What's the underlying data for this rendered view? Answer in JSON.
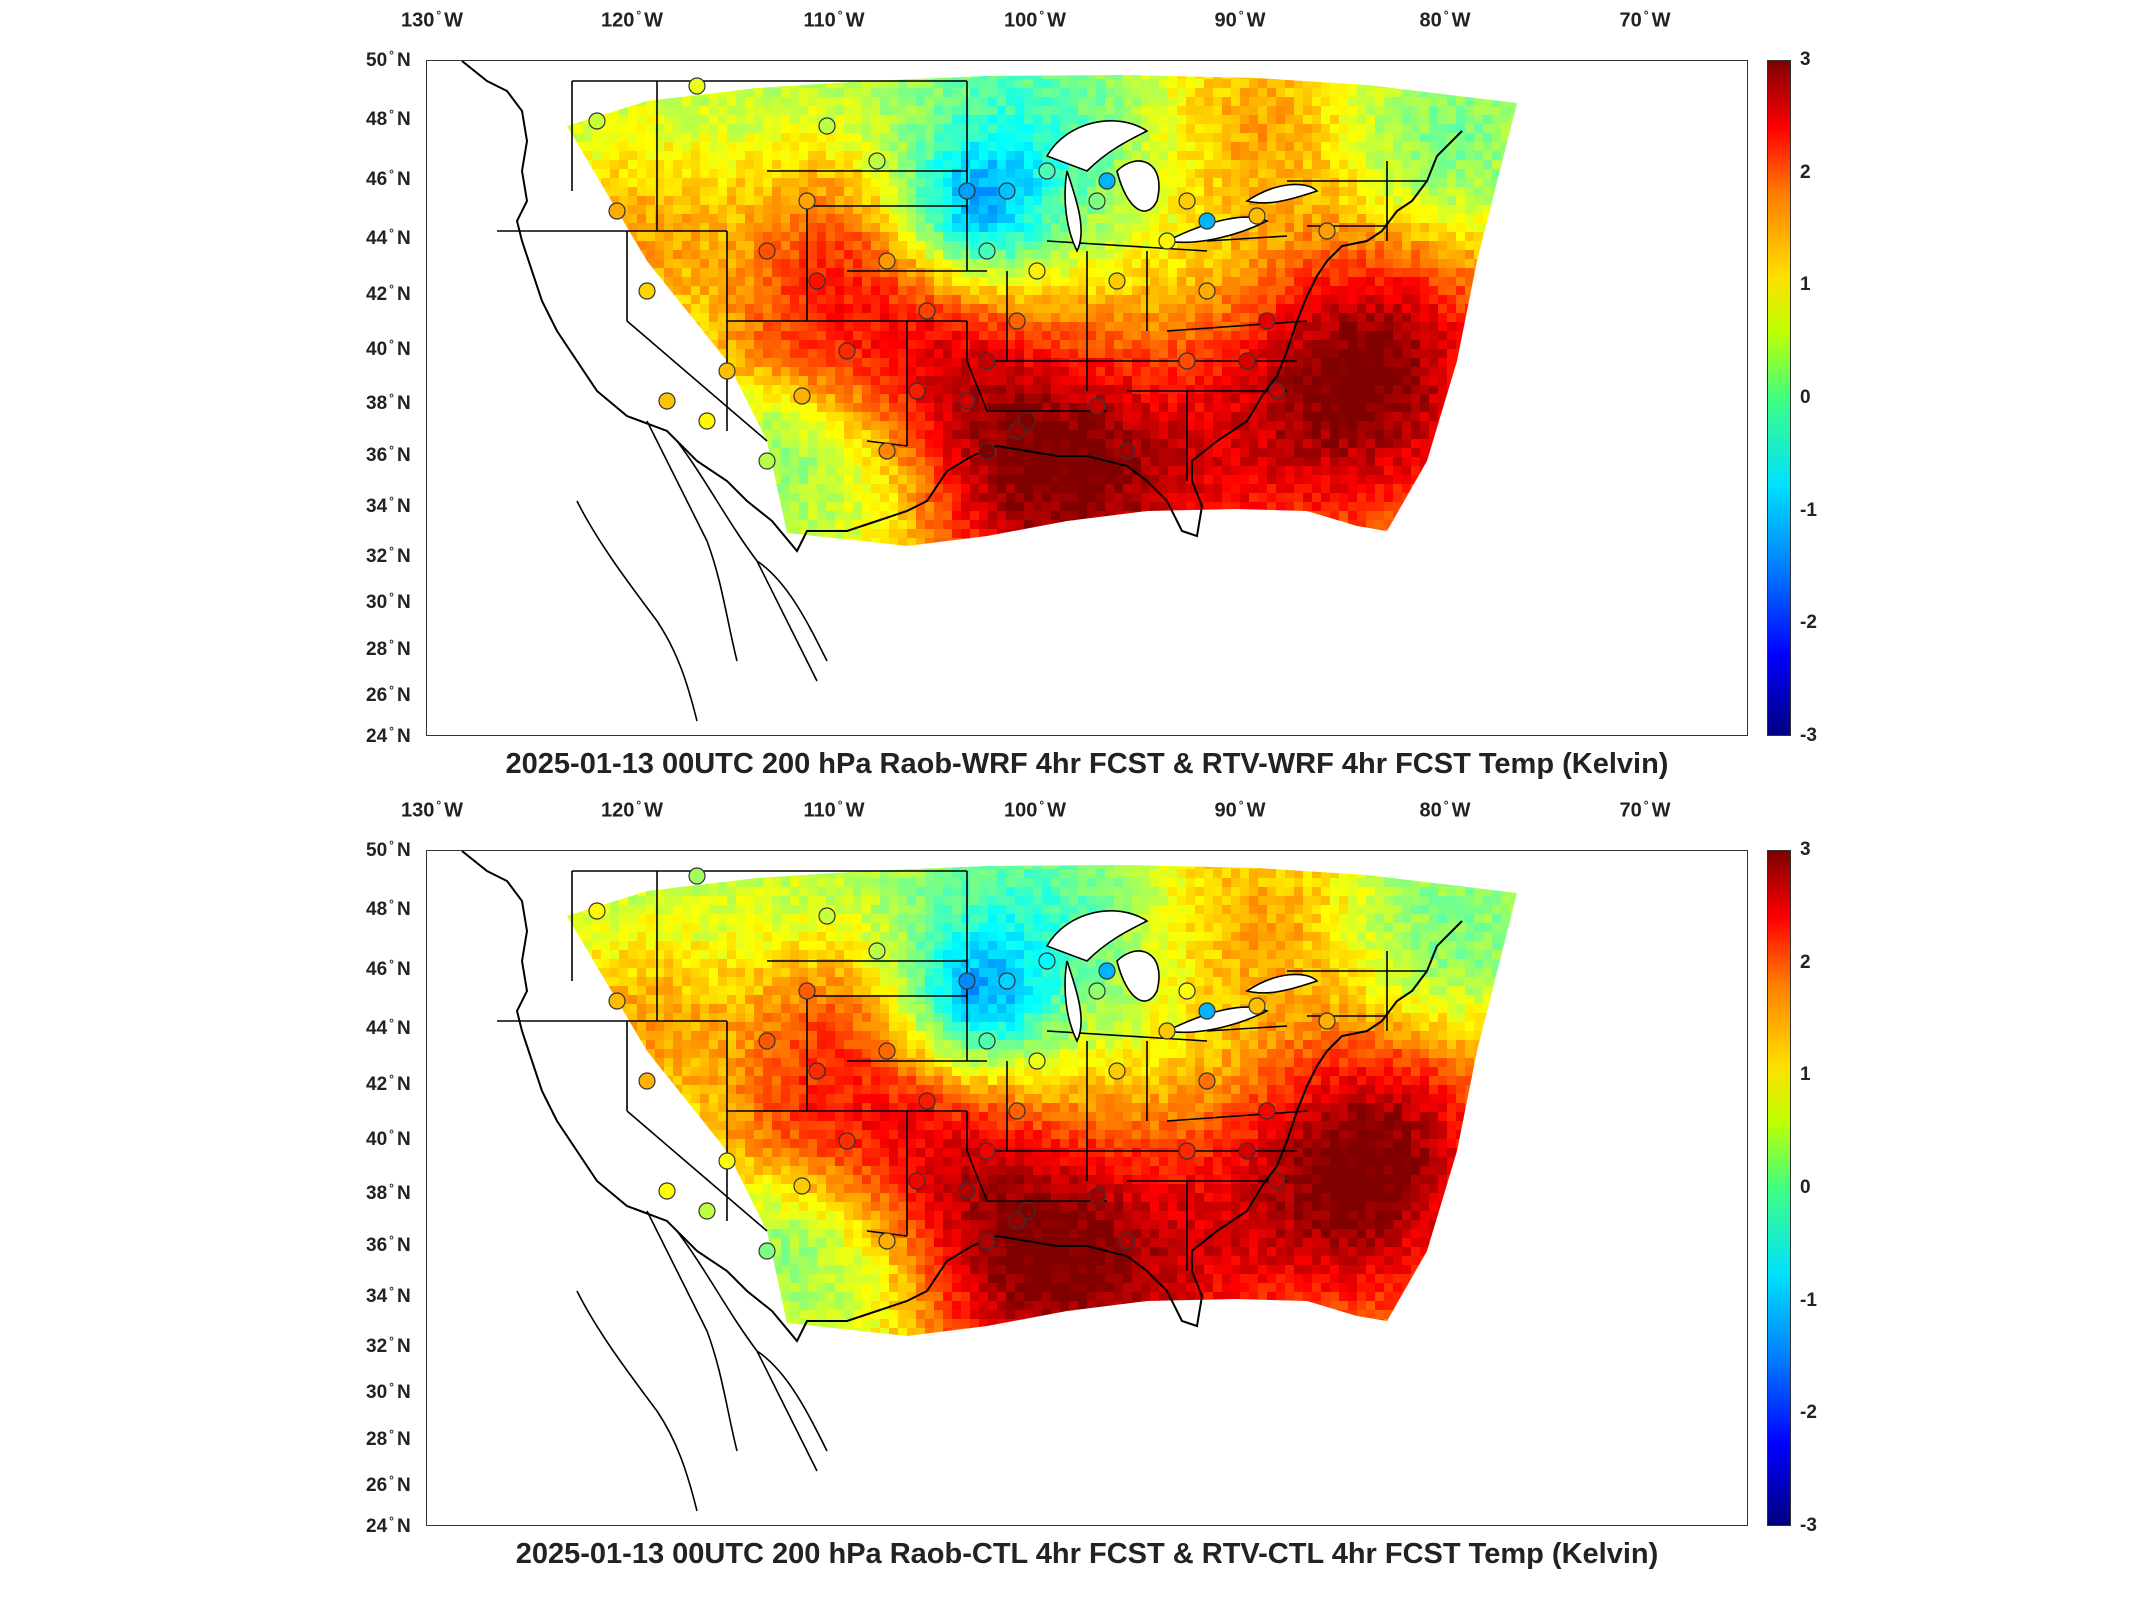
{
  "lon_ticks": [
    "130",
    "120",
    "110",
    "100",
    "90",
    "80",
    "70"
  ],
  "lon_suffix": "W",
  "lat_ticks": [
    "50",
    "48",
    "46",
    "44",
    "42",
    "40",
    "38",
    "36",
    "34",
    "32",
    "30",
    "28",
    "26",
    "24"
  ],
  "lat_suffix": "N",
  "degree_symbol": "°",
  "colorbar": {
    "ticks": [
      "3",
      "2",
      "1",
      "0",
      "-1",
      "-2",
      "-3"
    ],
    "range": [
      -3,
      3
    ],
    "colormap": "jet"
  },
  "panels": [
    {
      "title": "2025-01-13 00UTC 200 hPa Raob-WRF 4hr FCST & RTV-WRF 4hr FCST Temp (Kelvin)"
    },
    {
      "title": "2025-01-13 00UTC 200 hPa Raob-CTL 4hr FCST & RTV-CTL 4hr FCST Temp (Kelvin)"
    }
  ],
  "map_extent": {
    "lon": [
      -133,
      -64
    ],
    "lat": [
      24,
      50
    ]
  }
}
